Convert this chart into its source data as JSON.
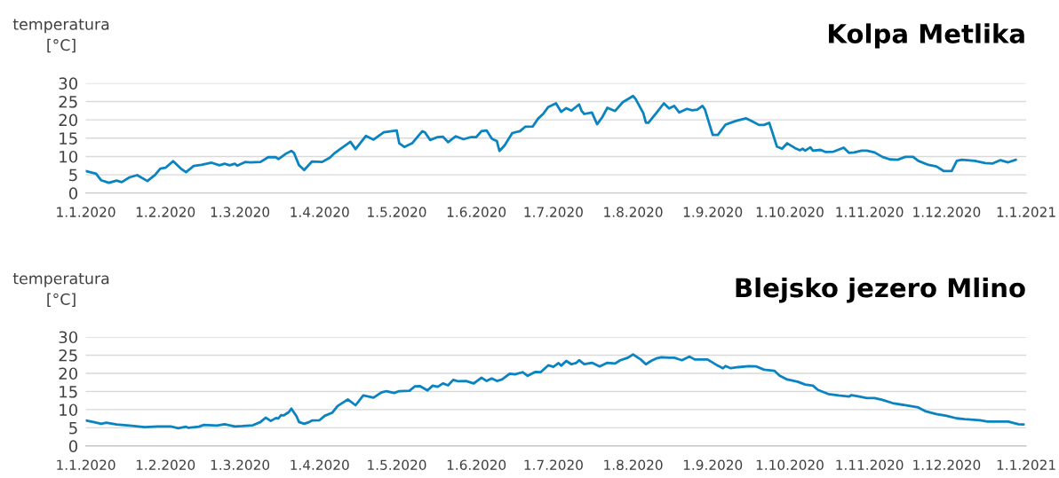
{
  "chart_data": [
    {
      "type": "line",
      "title": "Kolpa Metlika",
      "ylabel": "temperatura\n[°C]",
      "grid": "y",
      "line_style": "solid",
      "marker": "none",
      "xlim": [
        "2020-01-01",
        "2021-01-01"
      ],
      "ylim": [
        0,
        30
      ],
      "yticks": [
        0,
        5,
        10,
        15,
        20,
        25,
        30
      ],
      "xticks": [
        {
          "value": "2020-01-01",
          "label": "1.1.2020"
        },
        {
          "value": "2020-02-01",
          "label": "1.2.2020"
        },
        {
          "value": "2020-03-01",
          "label": "1.3.2020"
        },
        {
          "value": "2020-04-01",
          "label": "1.4.2020"
        },
        {
          "value": "2020-05-01",
          "label": "1.5.2020"
        },
        {
          "value": "2020-06-01",
          "label": "1.6.2020"
        },
        {
          "value": "2020-07-01",
          "label": "1.7.2020"
        },
        {
          "value": "2020-08-01",
          "label": "1.8.2020"
        },
        {
          "value": "2020-09-01",
          "label": "1.9.2020"
        },
        {
          "value": "2020-10-01",
          "label": "1.10.2020"
        },
        {
          "value": "2020-11-01",
          "label": "1.11.2020"
        },
        {
          "value": "2020-12-01",
          "label": "1.12.2020"
        },
        {
          "value": "2021-01-01",
          "label": "1.1.2021"
        }
      ],
      "series": [
        {
          "color": "#0a84c1",
          "x": [
            "2020-01-01",
            "2020-01-05",
            "2020-01-07",
            "2020-01-10",
            "2020-01-13",
            "2020-01-15",
            "2020-01-18",
            "2020-01-21",
            "2020-01-25",
            "2020-01-28",
            "2020-01-30",
            "2020-02-01",
            "2020-02-04",
            "2020-02-07",
            "2020-02-09",
            "2020-02-12",
            "2020-02-15",
            "2020-02-19",
            "2020-02-22",
            "2020-02-24",
            "2020-02-26",
            "2020-02-28",
            "2020-02-29",
            "2020-03-03",
            "2020-03-05",
            "2020-03-09",
            "2020-03-12",
            "2020-03-15",
            "2020-03-16",
            "2020-03-19",
            "2020-03-21",
            "2020-03-22",
            "2020-03-24",
            "2020-03-26",
            "2020-03-29",
            "2020-04-02",
            "2020-04-05",
            "2020-04-07",
            "2020-04-09",
            "2020-04-13",
            "2020-04-15",
            "2020-04-19",
            "2020-04-22",
            "2020-04-26",
            "2020-05-01",
            "2020-05-02",
            "2020-05-04",
            "2020-05-07",
            "2020-05-11",
            "2020-05-12",
            "2020-05-14",
            "2020-05-17",
            "2020-05-19",
            "2020-05-21",
            "2020-05-24",
            "2020-05-27",
            "2020-05-30",
            "2020-06-01",
            "2020-06-03",
            "2020-06-05",
            "2020-06-07",
            "2020-06-08",
            "2020-06-09",
            "2020-06-10",
            "2020-06-12",
            "2020-06-15",
            "2020-06-18",
            "2020-06-20",
            "2020-06-23",
            "2020-06-25",
            "2020-06-27",
            "2020-06-29",
            "2020-07-02",
            "2020-07-04",
            "2020-07-06",
            "2020-07-08",
            "2020-07-11",
            "2020-07-12",
            "2020-07-13",
            "2020-07-16",
            "2020-07-18",
            "2020-07-20",
            "2020-07-22",
            "2020-07-25",
            "2020-07-28",
            "2020-08-01",
            "2020-08-02",
            "2020-08-05",
            "2020-08-06",
            "2020-08-07",
            "2020-08-10",
            "2020-08-13",
            "2020-08-15",
            "2020-08-17",
            "2020-08-19",
            "2020-08-22",
            "2020-08-24",
            "2020-08-26",
            "2020-08-28",
            "2020-08-29",
            "2020-09-01",
            "2020-09-03",
            "2020-09-06",
            "2020-09-10",
            "2020-09-14",
            "2020-09-16",
            "2020-09-19",
            "2020-09-21",
            "2020-09-23",
            "2020-09-26",
            "2020-09-28",
            "2020-09-30",
            "2020-10-03",
            "2020-10-05",
            "2020-10-06",
            "2020-10-07",
            "2020-10-09",
            "2020-10-10",
            "2020-10-13",
            "2020-10-15",
            "2020-10-18",
            "2020-10-22",
            "2020-10-24",
            "2020-10-26",
            "2020-10-29",
            "2020-10-31",
            "2020-11-03",
            "2020-11-06",
            "2020-11-09",
            "2020-11-12",
            "2020-11-15",
            "2020-11-18",
            "2020-11-20",
            "2020-11-24",
            "2020-11-27",
            "2020-11-30",
            "2020-12-03",
            "2020-12-05",
            "2020-12-07",
            "2020-12-12",
            "2020-12-16",
            "2020-12-19",
            "2020-12-22",
            "2020-12-25",
            "2020-12-28"
          ],
          "values": [
            6.0,
            5.3,
            3.5,
            2.8,
            3.4,
            3.0,
            4.3,
            4.9,
            3.3,
            5.0,
            6.7,
            6.9,
            8.7,
            6.7,
            5.7,
            7.4,
            7.7,
            8.3,
            7.6,
            8.0,
            7.6,
            8.0,
            7.5,
            8.5,
            8.4,
            8.5,
            9.8,
            9.8,
            9.3,
            10.8,
            11.5,
            11.0,
            7.6,
            6.3,
            8.6,
            8.5,
            9.7,
            11.0,
            12.0,
            14.0,
            12.0,
            15.6,
            14.6,
            16.6,
            17.1,
            13.6,
            12.6,
            13.6,
            16.9,
            16.6,
            14.5,
            15.3,
            15.4,
            13.9,
            15.5,
            14.7,
            15.3,
            15.3,
            16.9,
            17.1,
            14.9,
            14.5,
            14.2,
            11.5,
            13.0,
            16.4,
            16.9,
            18.1,
            18.2,
            20.3,
            21.6,
            23.5,
            24.5,
            22.2,
            23.2,
            22.5,
            24.2,
            22.4,
            21.6,
            22.0,
            18.8,
            20.7,
            23.3,
            22.4,
            24.8,
            26.5,
            25.7,
            21.8,
            19.2,
            19.2,
            21.8,
            24.5,
            23.1,
            23.8,
            22.0,
            23.0,
            22.6,
            22.8,
            23.8,
            22.8,
            15.9,
            15.9,
            18.7,
            19.7,
            20.4,
            19.7,
            18.6,
            18.6,
            19.2,
            12.7,
            12.1,
            13.6,
            12.3,
            11.7,
            12.1,
            11.6,
            12.5,
            11.6,
            11.8,
            11.2,
            11.3,
            12.4,
            11.0,
            11.1,
            11.6,
            11.6,
            11.1,
            9.9,
            9.2,
            9.1,
            9.9,
            9.9,
            8.8,
            7.7,
            7.3,
            6.0,
            6.0,
            8.8,
            9.1,
            8.8,
            8.2,
            8.1,
            9.0,
            8.4,
            9.1
          ]
        }
      ]
    },
    {
      "type": "line",
      "title": "Blejsko jezero Mlino",
      "ylabel": "temperatura\n[°C]",
      "grid": "y",
      "line_style": "solid",
      "marker": "none",
      "xlim": [
        "2020-01-01",
        "2021-01-01"
      ],
      "ylim": [
        0,
        30
      ],
      "yticks": [
        0,
        5,
        10,
        15,
        20,
        25,
        30
      ],
      "xticks": [
        {
          "value": "2020-01-01",
          "label": "1.1.2020"
        },
        {
          "value": "2020-02-01",
          "label": "1.2.2020"
        },
        {
          "value": "2020-03-01",
          "label": "1.3.2020"
        },
        {
          "value": "2020-04-01",
          "label": "1.4.2020"
        },
        {
          "value": "2020-05-01",
          "label": "1.5.2020"
        },
        {
          "value": "2020-06-01",
          "label": "1.6.2020"
        },
        {
          "value": "2020-07-01",
          "label": "1.7.2020"
        },
        {
          "value": "2020-08-01",
          "label": "1.8.2020"
        },
        {
          "value": "2020-09-01",
          "label": "1.9.2020"
        },
        {
          "value": "2020-10-01",
          "label": "1.10.2020"
        },
        {
          "value": "2020-11-01",
          "label": "1.11.2020"
        },
        {
          "value": "2020-12-01",
          "label": "1.12.2020"
        },
        {
          "value": "2021-01-01",
          "label": "1.1.2021"
        }
      ],
      "series": [
        {
          "color": "#0a84c1",
          "x": [
            "2020-01-01",
            "2020-01-04",
            "2020-01-07",
            "2020-01-09",
            "2020-01-13",
            "2020-01-18",
            "2020-01-24",
            "2020-01-29",
            "2020-02-03",
            "2020-02-06",
            "2020-02-09",
            "2020-02-10",
            "2020-02-14",
            "2020-02-16",
            "2020-02-21",
            "2020-02-24",
            "2020-02-28",
            "2020-03-02",
            "2020-03-06",
            "2020-03-09",
            "2020-03-11",
            "2020-03-13",
            "2020-03-15",
            "2020-03-16",
            "2020-03-17",
            "2020-03-18",
            "2020-03-20",
            "2020-03-21",
            "2020-03-23",
            "2020-03-24",
            "2020-03-26",
            "2020-03-28",
            "2020-03-29",
            "2020-04-01",
            "2020-04-03",
            "2020-04-06",
            "2020-04-08",
            "2020-04-12",
            "2020-04-15",
            "2020-04-18",
            "2020-04-22",
            "2020-04-25",
            "2020-04-27",
            "2020-04-30",
            "2020-05-02",
            "2020-05-06",
            "2020-05-08",
            "2020-05-10",
            "2020-05-13",
            "2020-05-15",
            "2020-05-17",
            "2020-05-19",
            "2020-05-21",
            "2020-05-23",
            "2020-05-25",
            "2020-05-28",
            "2020-05-31",
            "2020-06-03",
            "2020-06-05",
            "2020-06-07",
            "2020-06-09",
            "2020-06-11",
            "2020-06-14",
            "2020-06-16",
            "2020-06-19",
            "2020-06-21",
            "2020-06-24",
            "2020-06-26",
            "2020-06-29",
            "2020-07-01",
            "2020-07-03",
            "2020-07-04",
            "2020-07-06",
            "2020-07-08",
            "2020-07-10",
            "2020-07-11",
            "2020-07-13",
            "2020-07-16",
            "2020-07-19",
            "2020-07-22",
            "2020-07-25",
            "2020-07-27",
            "2020-07-30",
            "2020-08-01",
            "2020-08-04",
            "2020-08-06",
            "2020-08-08",
            "2020-08-10",
            "2020-08-12",
            "2020-08-15",
            "2020-08-17",
            "2020-08-20",
            "2020-08-23",
            "2020-08-25",
            "2020-08-30",
            "2020-09-03",
            "2020-09-05",
            "2020-09-06",
            "2020-09-08",
            "2020-09-11",
            "2020-09-15",
            "2020-09-18",
            "2020-09-21",
            "2020-09-25",
            "2020-09-27",
            "2020-09-30",
            "2020-10-04",
            "2020-10-07",
            "2020-10-10",
            "2020-10-12",
            "2020-10-16",
            "2020-10-20",
            "2020-10-24",
            "2020-10-25",
            "2020-10-28",
            "2020-10-31",
            "2020-11-03",
            "2020-11-06",
            "2020-11-10",
            "2020-11-16",
            "2020-11-20",
            "2020-11-23",
            "2020-11-27",
            "2020-12-01",
            "2020-12-05",
            "2020-12-08",
            "2020-12-14",
            "2020-12-17",
            "2020-12-25",
            "2020-12-29",
            "2020-12-31"
          ],
          "values": [
            7.0,
            6.6,
            6.1,
            6.4,
            5.9,
            5.6,
            5.2,
            5.4,
            5.4,
            4.9,
            5.3,
            5.0,
            5.3,
            5.8,
            5.6,
            6.0,
            5.4,
            5.5,
            5.7,
            6.6,
            7.8,
            6.9,
            7.7,
            7.6,
            8.5,
            8.4,
            9.3,
            10.3,
            8.2,
            6.6,
            6.1,
            6.6,
            7.0,
            7.1,
            8.3,
            9.2,
            11.0,
            12.8,
            11.2,
            13.9,
            13.3,
            14.7,
            15.1,
            14.6,
            15.1,
            15.2,
            16.4,
            16.5,
            15.3,
            16.6,
            16.3,
            17.2,
            16.7,
            18.2,
            17.8,
            17.9,
            17.2,
            18.8,
            17.9,
            18.6,
            17.9,
            18.3,
            19.9,
            19.7,
            20.3,
            19.3,
            20.4,
            20.3,
            22.2,
            21.8,
            22.8,
            22.1,
            23.4,
            22.5,
            22.9,
            23.6,
            22.5,
            22.9,
            21.9,
            22.9,
            22.7,
            23.6,
            24.3,
            25.2,
            23.8,
            22.5,
            23.4,
            24.1,
            24.4,
            24.3,
            24.3,
            23.6,
            24.6,
            23.8,
            23.8,
            22.1,
            21.4,
            22.0,
            21.4,
            21.7,
            22.0,
            21.9,
            21.0,
            20.7,
            19.4,
            18.3,
            17.7,
            16.9,
            16.6,
            15.4,
            14.3,
            13.9,
            13.6,
            14.0,
            13.6,
            13.2,
            13.2,
            12.7,
            11.8,
            11.1,
            10.6,
            9.5,
            8.8,
            8.3,
            7.6,
            7.4,
            7.1,
            6.7,
            6.7,
            6.0,
            5.9
          ]
        }
      ]
    }
  ]
}
